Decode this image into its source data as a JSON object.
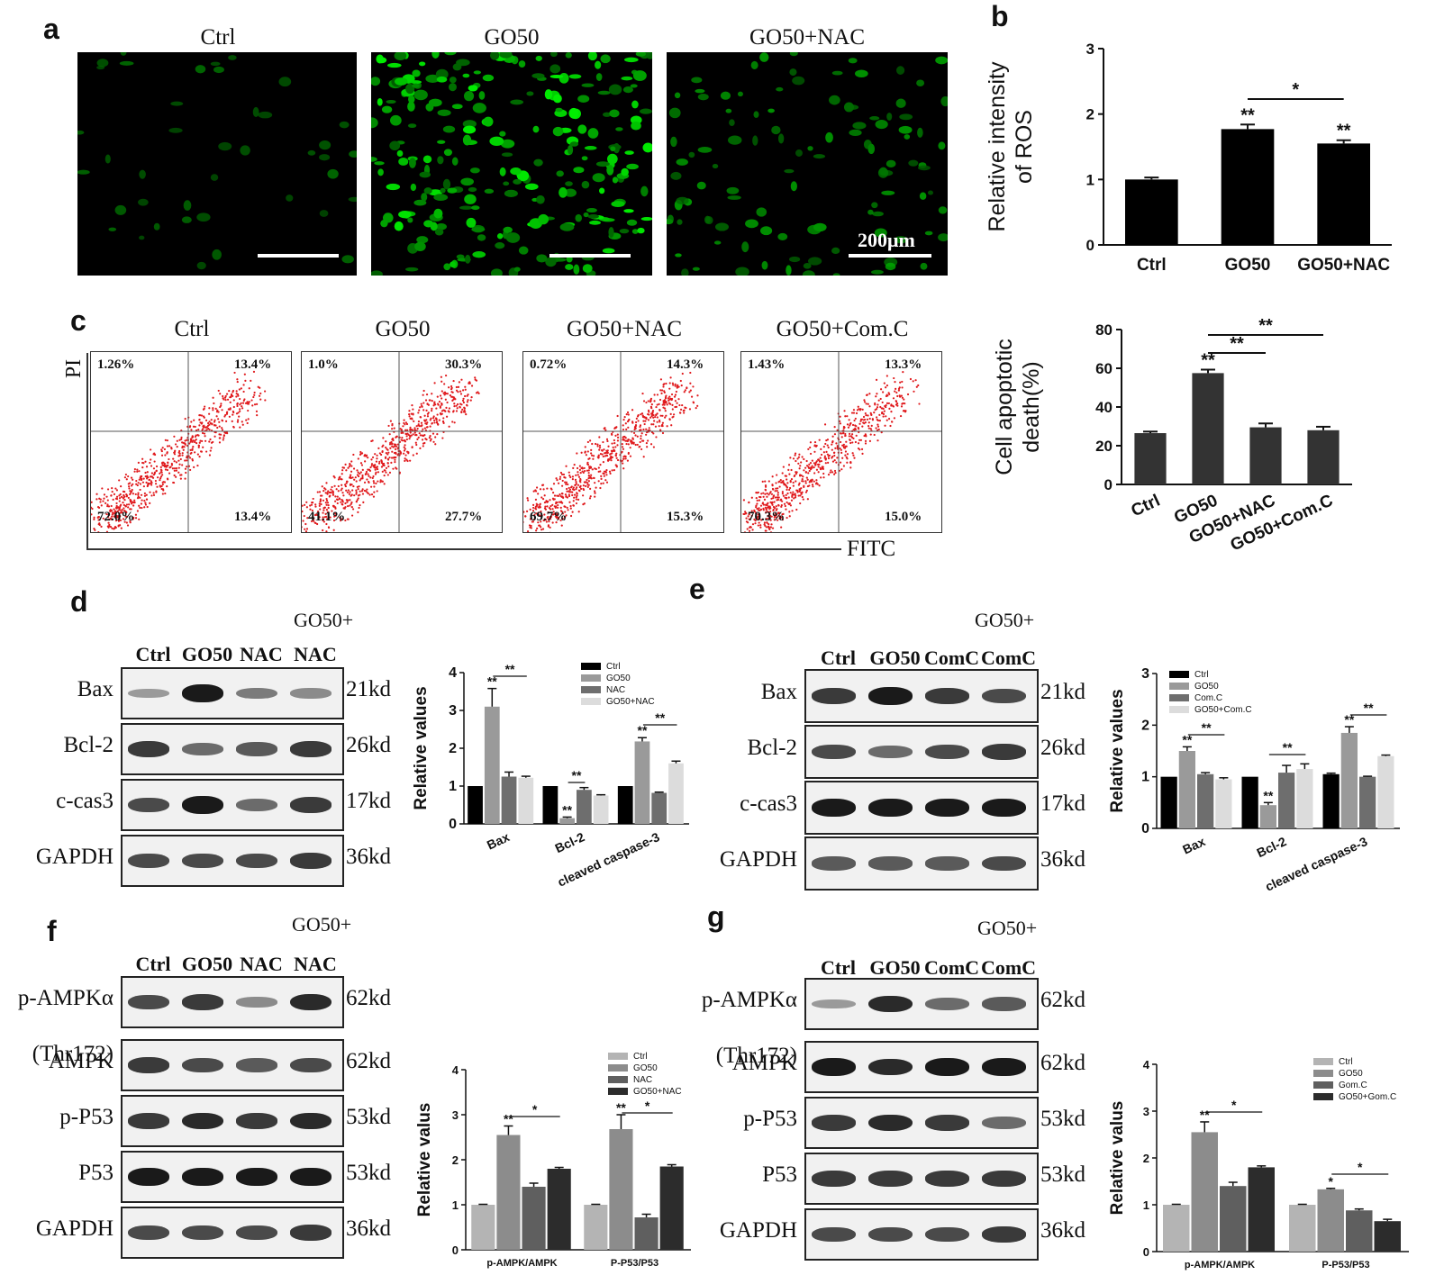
{
  "panels": {
    "a": {
      "label": "a",
      "titles": [
        "Ctrl",
        "GO50",
        "GO50+NAC"
      ],
      "scale": "200μm"
    },
    "b": {
      "label": "b"
    },
    "c": {
      "label": "c",
      "titles": [
        "Ctrl",
        "GO50",
        "GO50+NAC",
        "GO50+Com.C"
      ],
      "yaxis": "PI",
      "xaxis": "FITC",
      "quadrants": [
        {
          "ul": "1.26%",
          "ur": "13.4%",
          "ll": "72.0%",
          "lr": "13.4%"
        },
        {
          "ul": "1.0%",
          "ur": "30.3%",
          "ll": "41.1%",
          "lr": "27.7%"
        },
        {
          "ul": "0.72%",
          "ur": "14.3%",
          "ll": "69.7%",
          "lr": "15.3%"
        },
        {
          "ul": "1.43%",
          "ur": "13.3%",
          "ll": "70.3%",
          "lr": "15.0%"
        }
      ]
    },
    "d": {
      "label": "d",
      "group": "GO50+",
      "lanes": [
        "Ctrl",
        "GO50",
        "NAC",
        "NAC"
      ],
      "rows": [
        {
          "name": "Bax",
          "kd": "21kd"
        },
        {
          "name": "Bcl-2",
          "kd": "26kd"
        },
        {
          "name": "c-cas3",
          "kd": "17kd"
        },
        {
          "name": "GAPDH",
          "kd": "36kd"
        }
      ]
    },
    "e": {
      "label": "e",
      "group": "GO50+",
      "lanes": [
        "Ctrl",
        "GO50",
        "ComC",
        "ComC"
      ],
      "rows": [
        {
          "name": "Bax",
          "kd": "21kd"
        },
        {
          "name": "Bcl-2",
          "kd": "26kd"
        },
        {
          "name": "c-cas3",
          "kd": "17kd"
        },
        {
          "name": "GAPDH",
          "kd": "36kd"
        }
      ]
    },
    "f": {
      "label": "f",
      "group": "GO50+",
      "lanes": [
        "Ctrl",
        "GO50",
        "NAC",
        "NAC"
      ],
      "rows": [
        {
          "name": "p-AMPKα",
          "kd": "62kd"
        },
        {
          "name": "(Thr172)",
          "kd": ""
        },
        {
          "name": "AMPK",
          "kd": "62kd"
        },
        {
          "name": "p-P53",
          "kd": "53kd"
        },
        {
          "name": "P53",
          "kd": "53kd"
        },
        {
          "name": "GAPDH",
          "kd": "36kd"
        }
      ]
    },
    "g": {
      "label": "g",
      "group": "GO50+",
      "lanes": [
        "Ctrl",
        "GO50",
        "ComC",
        "ComC"
      ],
      "rows": [
        {
          "name": "p-AMPKα",
          "kd": "62kd"
        },
        {
          "name": "(Thr172)",
          "kd": ""
        },
        {
          "name": "AMPK",
          "kd": "62kd"
        },
        {
          "name": "p-P53",
          "kd": "53kd"
        },
        {
          "name": "P53",
          "kd": "53kd"
        },
        {
          "name": "GAPDH",
          "kd": "36kd"
        }
      ]
    }
  },
  "chart_data": [
    {
      "id": "b",
      "type": "bar",
      "ylabel": "Relative intensity of ROS",
      "categories": [
        "Ctrl",
        "GO50",
        "GO50+NAC"
      ],
      "values": [
        1.0,
        1.77,
        1.55
      ],
      "errors": [
        0.03,
        0.07,
        0.05
      ],
      "ylim": [
        0,
        3
      ],
      "yticks": [
        0,
        1,
        2,
        3
      ],
      "stars": [
        "",
        "**",
        "**"
      ],
      "brackets": [
        {
          "from": 1,
          "to": 2,
          "text": "*"
        }
      ],
      "colors": [
        "#000000"
      ]
    },
    {
      "id": "c2",
      "type": "bar",
      "ylabel": "Cell apoptotic death(%)",
      "categories": [
        "Ctrl",
        "GO50",
        "GO50+NAC",
        "GO50+Com.C"
      ],
      "values": [
        26.5,
        57.5,
        29.5,
        28.0
      ],
      "errors": [
        0.8,
        1.8,
        2.0,
        1.8
      ],
      "ylim": [
        0,
        80
      ],
      "yticks": [
        0,
        20,
        40,
        60,
        80
      ],
      "stars": [
        "",
        "**",
        "",
        ""
      ],
      "brackets": [
        {
          "from": 1,
          "to": 2,
          "text": "**"
        },
        {
          "from": 1,
          "to": 3,
          "text": "**"
        }
      ],
      "colors": [
        "#333333"
      ]
    },
    {
      "id": "d",
      "type": "bar",
      "ylabel": "Relative values",
      "categories": [
        "Bax",
        "Bcl-2",
        "cleaved caspase-3"
      ],
      "series": [
        {
          "name": "Ctrl",
          "values": [
            1.0,
            1.0,
            1.0
          ]
        },
        {
          "name": "GO50",
          "values": [
            3.1,
            0.15,
            2.18
          ]
        },
        {
          "name": "NAC",
          "values": [
            1.25,
            0.9,
            0.82
          ]
        },
        {
          "name": "GO50+NAC",
          "values": [
            1.22,
            0.75,
            1.6
          ]
        }
      ],
      "errors": [
        [
          0,
          0,
          0
        ],
        [
          0.48,
          0.03,
          0.1
        ],
        [
          0.12,
          0.06,
          0.02
        ],
        [
          0.04,
          0.02,
          0.06
        ]
      ],
      "ylim": [
        0,
        4
      ],
      "yticks": [
        0,
        1,
        2,
        3,
        4
      ],
      "colors": [
        "#000000",
        "#9a9a9a",
        "#6e6e6e",
        "#dcdcdc"
      ],
      "stars": [
        [
          "",
          "**",
          "",
          ""
        ],
        [
          "",
          "**",
          "",
          ""
        ],
        [
          "",
          "**",
          "",
          ""
        ]
      ],
      "brackets": [
        {
          "cat": 0,
          "from": 1,
          "to": 3,
          "text": "**"
        },
        {
          "cat": 1,
          "from": 1,
          "to": 2,
          "text": "**"
        },
        {
          "cat": 2,
          "from": 1,
          "to": 3,
          "text": "**"
        }
      ]
    },
    {
      "id": "e",
      "type": "bar",
      "ylabel": "Relative values",
      "categories": [
        "Bax",
        "Bcl-2",
        "cleaved caspase-3"
      ],
      "series": [
        {
          "name": "Ctrl",
          "values": [
            1.0,
            1.0,
            1.05
          ]
        },
        {
          "name": "GO50",
          "values": [
            1.5,
            0.45,
            1.85
          ]
        },
        {
          "name": "Com.C",
          "values": [
            1.05,
            1.08,
            1.0
          ]
        },
        {
          "name": "GO50+Com.C",
          "values": [
            0.95,
            1.15,
            1.4
          ]
        }
      ],
      "errors": [
        [
          0,
          0,
          0.02
        ],
        [
          0.08,
          0.05,
          0.12
        ],
        [
          0.03,
          0.14,
          0.01
        ],
        [
          0.03,
          0.1,
          0.02
        ]
      ],
      "ylim": [
        0,
        3
      ],
      "yticks": [
        0,
        1,
        2,
        3
      ],
      "colors": [
        "#000000",
        "#9a9a9a",
        "#6e6e6e",
        "#dcdcdc"
      ],
      "stars": [
        [
          "",
          "**",
          "",
          ""
        ],
        [
          "",
          "**",
          "",
          ""
        ],
        [
          "",
          "**",
          "",
          ""
        ]
      ],
      "brackets": [
        {
          "cat": 0,
          "from": 1,
          "to": 3,
          "text": "**"
        },
        {
          "cat": 1,
          "from": 1,
          "to": 3,
          "text": "**"
        },
        {
          "cat": 2,
          "from": 1,
          "to": 3,
          "text": "**"
        }
      ]
    },
    {
      "id": "f",
      "type": "bar",
      "ylabel": "Relative valus",
      "categories": [
        "p-AMPK/AMPK",
        "P-P53/P53"
      ],
      "series": [
        {
          "name": "Ctrl",
          "values": [
            1.0,
            1.0
          ]
        },
        {
          "name": "GO50",
          "values": [
            2.55,
            2.68
          ]
        },
        {
          "name": "NAC",
          "values": [
            1.4,
            0.72
          ]
        },
        {
          "name": "GO50+NAC",
          "values": [
            1.8,
            1.85
          ]
        }
      ],
      "errors": [
        [
          0.01,
          0.01
        ],
        [
          0.2,
          0.32
        ],
        [
          0.08,
          0.07
        ],
        [
          0.03,
          0.04
        ]
      ],
      "ylim": [
        0,
        4
      ],
      "yticks": [
        0,
        1,
        2,
        3,
        4
      ],
      "colors": [
        "#b4b4b4",
        "#8c8c8c",
        "#5f5f5f",
        "#2c2c2c"
      ],
      "stars": [
        [
          "",
          "**",
          "",
          ""
        ],
        [
          "",
          "**",
          "",
          ""
        ]
      ],
      "brackets": [
        {
          "cat": 0,
          "from": 1,
          "to": 3,
          "text": "*"
        },
        {
          "cat": 1,
          "from": 1,
          "to": 3,
          "text": "*"
        }
      ]
    },
    {
      "id": "g",
      "type": "bar",
      "ylabel": "Relative valus",
      "categories": [
        "p-AMPK/AMPK",
        "P-P53/P53"
      ],
      "series": [
        {
          "name": "Ctrl",
          "values": [
            1.0,
            1.0
          ]
        },
        {
          "name": "GO50",
          "values": [
            2.55,
            1.33
          ]
        },
        {
          "name": "Gom.C",
          "values": [
            1.4,
            0.88
          ]
        },
        {
          "name": "GO50+Gom.C",
          "values": [
            1.8,
            0.65
          ]
        }
      ],
      "errors": [
        [
          0.01,
          0.01
        ],
        [
          0.22,
          0.02
        ],
        [
          0.08,
          0.03
        ],
        [
          0.03,
          0.04
        ]
      ],
      "ylim": [
        0,
        4
      ],
      "yticks": [
        0,
        1,
        2,
        3,
        4
      ],
      "colors": [
        "#b4b4b4",
        "#8c8c8c",
        "#5f5f5f",
        "#2c2c2c"
      ],
      "stars": [
        [
          "",
          "**",
          "",
          ""
        ],
        [
          "",
          "*",
          "",
          ""
        ]
      ],
      "brackets": [
        {
          "cat": 0,
          "from": 1,
          "to": 3,
          "text": "*"
        },
        {
          "cat": 1,
          "from": 1,
          "to": 3,
          "text": "*"
        }
      ]
    }
  ]
}
